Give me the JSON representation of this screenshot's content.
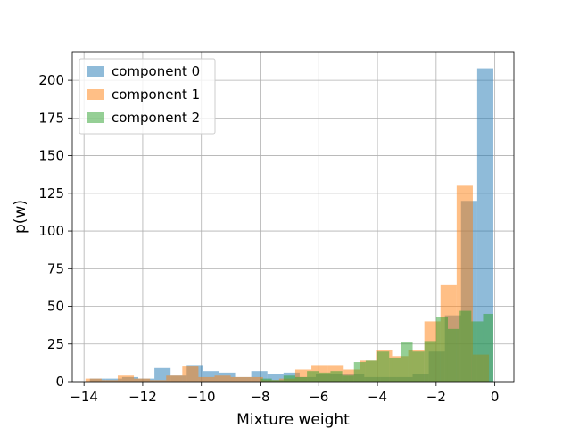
{
  "chart_data": {
    "type": "histogram",
    "title": "",
    "xlabel": "Mixture weight",
    "ylabel": "p(w)",
    "xlim": [
      -14.4,
      0.65
    ],
    "ylim": [
      0,
      219
    ],
    "xticks": [
      -14,
      -12,
      -10,
      -8,
      -6,
      -4,
      -2,
      0
    ],
    "xtick_labels": [
      "−14",
      "−12",
      "−10",
      "−8",
      "−6",
      "−4",
      "−2",
      "0"
    ],
    "yticks": [
      0,
      25,
      50,
      75,
      100,
      125,
      150,
      175,
      200
    ],
    "ytick_labels": [
      "0",
      "25",
      "50",
      "75",
      "100",
      "125",
      "150",
      "175",
      "200"
    ],
    "grid": true,
    "legend_position": "top-left",
    "series": [
      {
        "name": "component 0",
        "color": "#1f77b4",
        "opacity": 0.5,
        "bin_edges": [
          -13.8,
          -13.25,
          -12.7,
          -12.15,
          -11.6,
          -11.05,
          -10.5,
          -9.95,
          -9.4,
          -8.85,
          -8.3,
          -7.75,
          -7.2,
          -6.65,
          -6.1,
          -5.55,
          -5.0,
          -4.45,
          -3.9,
          -3.35,
          -2.8,
          -2.25,
          -1.7,
          -1.15,
          -0.6,
          -0.05
        ],
        "counts": [
          2,
          2,
          3,
          2,
          9,
          4,
          11,
          7,
          6,
          3,
          7,
          5,
          6,
          3,
          5,
          5,
          5,
          3,
          3,
          3,
          5,
          20,
          44,
          120,
          208
        ]
      },
      {
        "name": "component 1",
        "color": "#ff7f0e",
        "opacity": 0.5,
        "bin_edges": [
          -13.95,
          -13.4,
          -12.85,
          -12.3,
          -11.75,
          -11.2,
          -10.65,
          -10.1,
          -9.55,
          -9.0,
          -8.45,
          -7.9,
          -7.35,
          -6.8,
          -6.25,
          -5.7,
          -5.15,
          -4.6,
          -4.05,
          -3.5,
          -2.95,
          -2.4,
          -1.85,
          -1.3,
          -0.75,
          -0.2
        ],
        "counts": [
          2,
          1,
          4,
          2,
          1,
          4,
          10,
          3,
          4,
          3,
          3,
          1,
          2,
          8,
          11,
          11,
          8,
          14,
          21,
          17,
          21,
          40,
          64,
          130,
          18
        ]
      },
      {
        "name": "component 2",
        "color": "#2ca02c",
        "opacity": 0.5,
        "bin_edges": [
          -8.0,
          -7.6,
          -7.2,
          -6.8,
          -6.4,
          -6.0,
          -5.6,
          -5.2,
          -4.8,
          -4.4,
          -4.0,
          -3.6,
          -3.2,
          -2.8,
          -2.4,
          -2.0,
          -1.6,
          -1.2,
          -0.8,
          -0.4,
          -0.05
        ],
        "counts": [
          2,
          1,
          4,
          3,
          7,
          6,
          7,
          4,
          13,
          14,
          20,
          16,
          26,
          20,
          27,
          43,
          35,
          47,
          40,
          45
        ]
      }
    ]
  }
}
